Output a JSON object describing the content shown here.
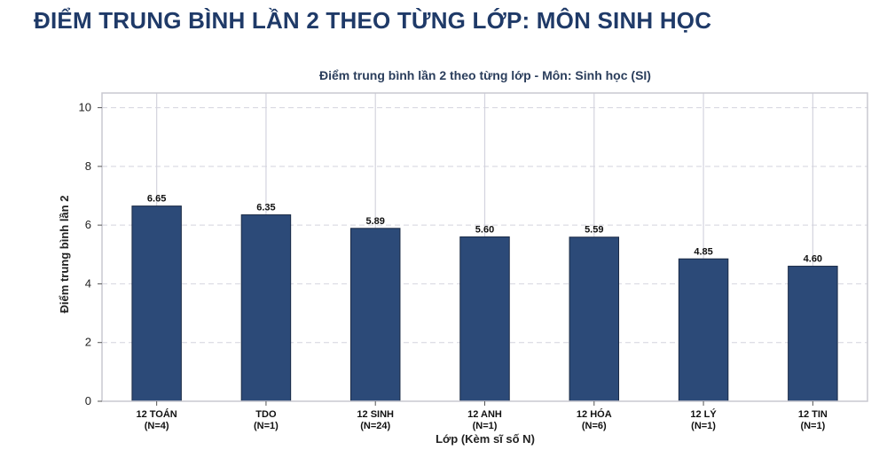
{
  "page": {
    "heading": "ĐIỂM TRUNG BÌNH LẦN 2 THEO TỪNG LỚP: MÔN SINH HỌC"
  },
  "chart_data": {
    "type": "bar",
    "title": "Điểm trung bình lần 2 theo từng lớp - Môn: Sinh học (SI)",
    "xlabel": "Lớp (Kèm sĩ số N)",
    "ylabel": "Điểm trung bình lần 2",
    "categories": [
      "12 TOÁN",
      "TDO",
      "12 SINH",
      "12 ANH",
      "12 HÓA",
      "12 LÝ",
      "12 TIN"
    ],
    "sample_sizes": [
      "(N=4)",
      "(N=1)",
      "(N=24)",
      "(N=1)",
      "(N=6)",
      "(N=1)",
      "(N=1)"
    ],
    "values": [
      6.65,
      6.35,
      5.89,
      5.6,
      5.59,
      4.85,
      4.6
    ],
    "value_labels": [
      "6.65",
      "6.35",
      "5.89",
      "5.60",
      "5.59",
      "4.85",
      "4.60"
    ],
    "ylim": [
      0,
      10.5
    ],
    "yticks": [
      0,
      2,
      4,
      6,
      8,
      10
    ],
    "grid": true,
    "colors": {
      "bar": "#2c4a78",
      "bar_edge": "#1a2a45",
      "grid": "#d4d4de",
      "frame": "#c8c8d0",
      "title": "#1f3a68"
    }
  }
}
